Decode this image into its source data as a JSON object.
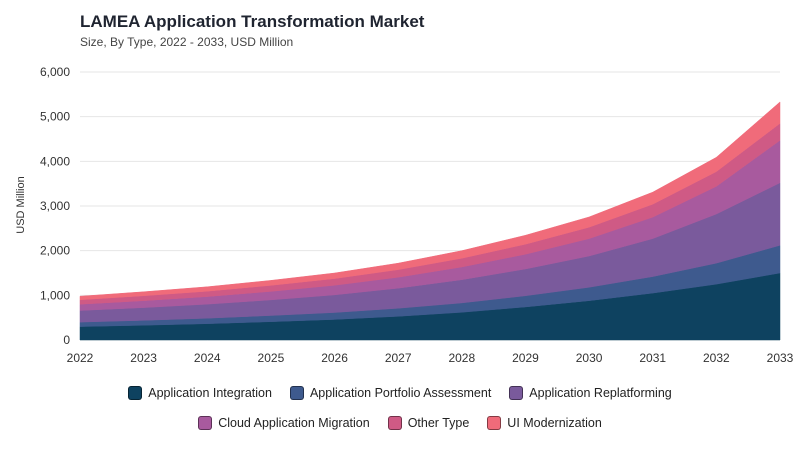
{
  "chart_data": {
    "type": "area",
    "stacked": true,
    "title": "LAMEA Application Transformation Market",
    "subtitle": "Size, By Type, 2022 - 2033, USD Million",
    "xlabel": "",
    "ylabel": "USD Million",
    "ylim": [
      0,
      6000
    ],
    "yticks": [
      "0",
      "1,000",
      "2,000",
      "3,000",
      "4,000",
      "5,000",
      "6,000"
    ],
    "ytick_values": [
      0,
      1000,
      2000,
      3000,
      4000,
      5000,
      6000
    ],
    "categories": [
      "2022",
      "2023",
      "2024",
      "2025",
      "2026",
      "2027",
      "2028",
      "2029",
      "2030",
      "2031",
      "2032",
      "2033"
    ],
    "grid": true,
    "legend_position": "bottom",
    "series": [
      {
        "name": "Application Integration",
        "color": "#0e4260",
        "values": [
          300,
          330,
          365,
          410,
          460,
          530,
          620,
          740,
          880,
          1050,
          1250,
          1500
        ]
      },
      {
        "name": "Application Portfolio Assessment",
        "color": "#3e5a8e",
        "values": [
          100,
          110,
          122,
          138,
          155,
          180,
          210,
          250,
          300,
          370,
          470,
          620
        ]
      },
      {
        "name": "Application Replatforming",
        "color": "#7a5a9c",
        "values": [
          260,
          285,
          315,
          350,
          395,
          450,
          520,
          600,
          700,
          850,
          1100,
          1400
        ]
      },
      {
        "name": "Cloud Application Migration",
        "color": "#a85a9e",
        "values": [
          140,
          155,
          170,
          190,
          215,
          245,
          285,
          330,
          390,
          480,
          620,
          950
        ]
      },
      {
        "name": "Other Type",
        "color": "#cf5a85",
        "values": [
          100,
          110,
          120,
          135,
          150,
          170,
          195,
          225,
          255,
          290,
          330,
          380
        ]
      },
      {
        "name": "UI Modernization",
        "color": "#f06b7a",
        "values": [
          80,
          90,
          100,
          112,
          125,
          145,
          170,
          200,
          230,
          270,
          320,
          480
        ]
      }
    ]
  }
}
